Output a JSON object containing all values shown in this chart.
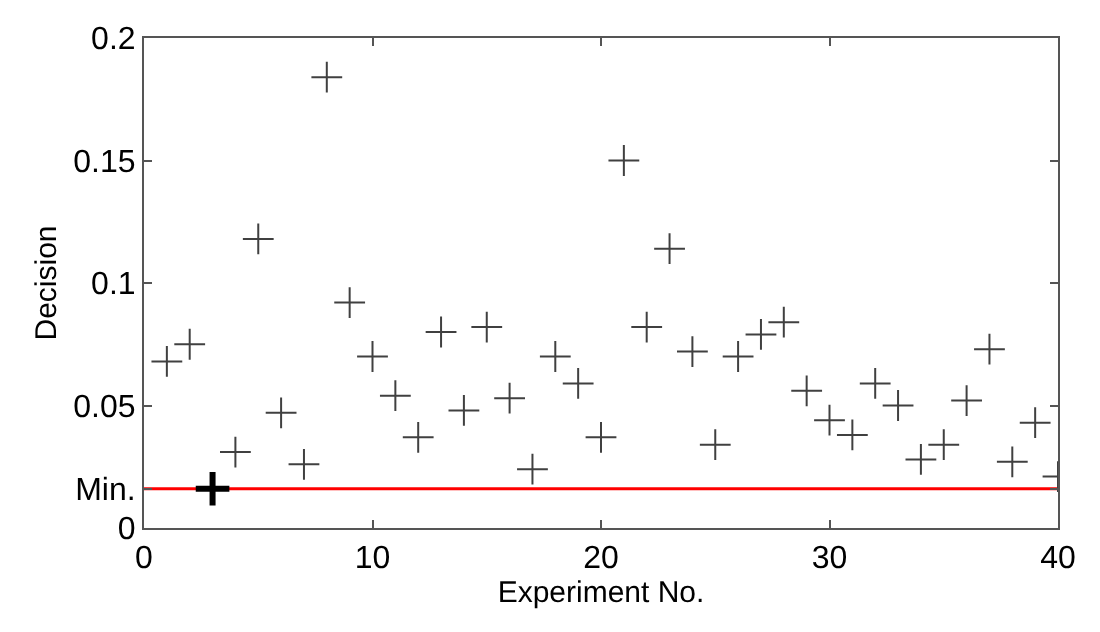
{
  "chart_data": {
    "type": "scatter",
    "xlabel": "Experiment No.",
    "ylabel": "Decision",
    "x": [
      1,
      2,
      3,
      4,
      5,
      6,
      7,
      8,
      9,
      10,
      11,
      12,
      13,
      14,
      15,
      16,
      17,
      18,
      19,
      20,
      21,
      22,
      23,
      24,
      25,
      26,
      27,
      28,
      29,
      30,
      31,
      32,
      33,
      34,
      35,
      36,
      37,
      38,
      39,
      40
    ],
    "series": [
      {
        "color": "#404040",
        "values": [
          0.068,
          0.075,
          null,
          0.031,
          0.118,
          0.047,
          0.026,
          0.184,
          0.092,
          0.07,
          0.054,
          0.037,
          0.08,
          0.048,
          0.082,
          0.053,
          0.024,
          0.07,
          0.059,
          0.037,
          0.15,
          0.082,
          0.114,
          0.072,
          0.034,
          0.07,
          0.079,
          0.084,
          0.056,
          0.044,
          0.038,
          0.059,
          0.05,
          0.028,
          0.034,
          0.052,
          0.073,
          0.027,
          0.043,
          0.021
        ]
      },
      {
        "color": "#000000",
        "x": [
          3
        ],
        "values": [
          0.016
        ]
      }
    ],
    "marker": "cross",
    "xlim": [
      0,
      40
    ],
    "xticks": [
      0,
      10,
      20,
      30,
      40
    ],
    "ylim": [
      0,
      0.2
    ],
    "yticks": [
      0,
      {
        "value": 0.016,
        "label": "Min."
      },
      0.05,
      0.1,
      0.15,
      0.2
    ],
    "ref_lines": [
      {
        "axis": "y",
        "value": 0.016,
        "color": "#ff0000"
      }
    ],
    "grid": false
  }
}
